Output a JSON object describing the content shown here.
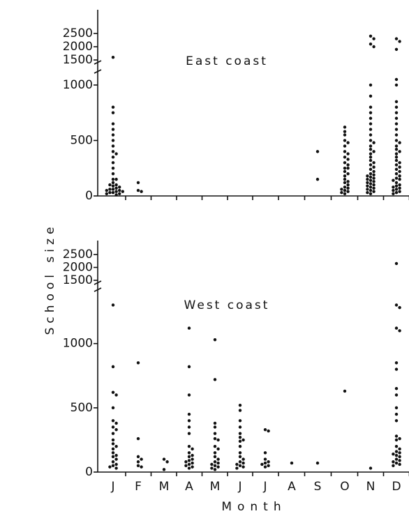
{
  "chart_data": [
    {
      "type": "strip",
      "title": "East coast",
      "y_label": "School size",
      "ylim": [
        0,
        2500
      ],
      "ybreak": [
        1100,
        1500
      ],
      "yticks": [
        0,
        500,
        1000,
        1500,
        2000,
        2500
      ],
      "color": "#111111",
      "values": [
        [
          1600,
          800,
          750,
          650,
          600,
          550,
          500,
          450,
          400,
          380,
          350,
          300,
          250,
          200,
          150,
          150,
          120,
          100,
          100,
          90,
          80,
          70,
          60,
          60,
          50,
          50,
          40,
          40,
          30,
          30,
          20,
          20,
          10
        ],
        [
          120,
          50,
          40
        ],
        [],
        [],
        [],
        [],
        [],
        [],
        [
          400,
          150
        ],
        [
          620,
          580,
          550,
          500,
          480,
          450,
          400,
          380,
          350,
          330,
          300,
          280,
          250,
          250,
          220,
          200,
          180,
          150,
          130,
          120,
          100,
          80,
          70,
          60,
          50,
          40,
          30,
          20
        ],
        [
          2400,
          2300,
          2100,
          2000,
          1000,
          900,
          800,
          750,
          700,
          650,
          600,
          550,
          500,
          480,
          450,
          420,
          400,
          380,
          350,
          320,
          300,
          280,
          260,
          240,
          220,
          200,
          190,
          180,
          170,
          160,
          150,
          140,
          130,
          120,
          110,
          100,
          90,
          80,
          70,
          60,
          50,
          40,
          30,
          20
        ],
        [
          2300,
          2200,
          1900,
          1050,
          1000,
          850,
          800,
          750,
          700,
          650,
          600,
          550,
          500,
          480,
          450,
          420,
          400,
          380,
          350,
          320,
          300,
          280,
          260,
          240,
          220,
          200,
          180,
          160,
          150,
          140,
          120,
          100,
          90,
          80,
          70,
          60,
          50,
          40,
          30,
          20
        ]
      ]
    },
    {
      "type": "strip",
      "title": "West coast",
      "x_label": "Month",
      "categories": [
        "J",
        "F",
        "M",
        "A",
        "M",
        "J",
        "J",
        "A",
        "S",
        "O",
        "N",
        "D"
      ],
      "ylim": [
        0,
        2500
      ],
      "ybreak": [
        1400,
        1500
      ],
      "yticks": [
        0,
        500,
        1000,
        1500,
        2000,
        2500
      ],
      "color": "#111111",
      "values": [
        [
          1300,
          820,
          620,
          600,
          500,
          400,
          380,
          350,
          330,
          300,
          250,
          220,
          200,
          180,
          150,
          130,
          120,
          100,
          80,
          60,
          50,
          40,
          30
        ],
        [
          850,
          260,
          120,
          100,
          80,
          50,
          40
        ],
        [
          100,
          80,
          20
        ],
        [
          1120,
          820,
          600,
          450,
          400,
          350,
          300,
          200,
          180,
          150,
          130,
          120,
          100,
          90,
          80,
          70,
          60,
          50,
          40,
          30
        ],
        [
          1030,
          720,
          380,
          350,
          300,
          260,
          250,
          200,
          180,
          150,
          120,
          100,
          80,
          70,
          60,
          50,
          40,
          30,
          20
        ],
        [
          520,
          480,
          400,
          350,
          300,
          270,
          250,
          240,
          200,
          150,
          120,
          100,
          80,
          70,
          60,
          50,
          40,
          30
        ],
        [
          330,
          320,
          150,
          100,
          80,
          70,
          60,
          50,
          40
        ],
        [
          70
        ],
        [
          70
        ],
        [
          630
        ],
        [
          30
        ],
        [
          2150,
          1300,
          1280,
          1120,
          1100,
          850,
          800,
          650,
          600,
          500,
          450,
          400,
          280,
          260,
          250,
          200,
          180,
          160,
          150,
          140,
          130,
          120,
          100,
          90,
          80,
          70,
          60,
          50
        ]
      ]
    }
  ]
}
